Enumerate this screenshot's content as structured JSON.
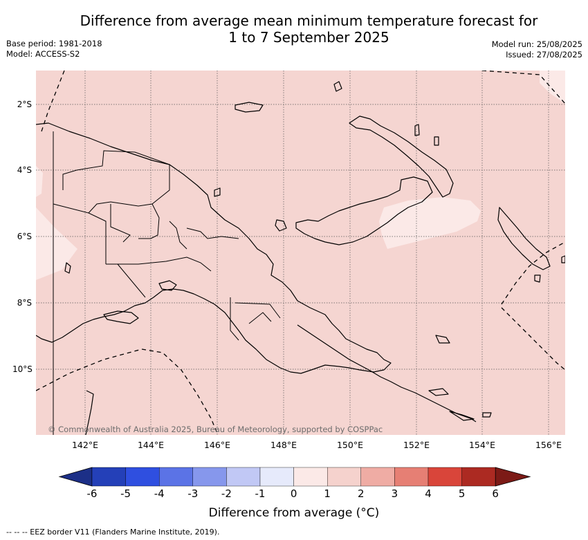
{
  "title_line1": "Difference from average mean minimum temperature forecast for",
  "title_line2": "1 to 7 September 2025",
  "base_period": "Base period: 1981-2018",
  "model": "Model: ACCESS-S2",
  "model_run": "Model run: 25/08/2025",
  "issued": "Issued: 27/08/2025",
  "lat_labels": [
    "2°S",
    "4°S",
    "6°S",
    "8°S",
    "10°S"
  ],
  "lon_labels": [
    "142°E",
    "144°E",
    "146°E",
    "148°E",
    "150°E",
    "152°E",
    "154°E",
    "156°E"
  ],
  "copyright": "© Commonwealth of Australia 2025, Bureau of Meteorology, supported by COSPPac",
  "colorbar": {
    "ticks": [
      "-6",
      "-5",
      "-4",
      "-3",
      "-2",
      "-1",
      "0",
      "1",
      "2",
      "3",
      "4",
      "5",
      "6"
    ],
    "colors": [
      "#1c2f87",
      "#2440b8",
      "#2f4fe0",
      "#5b73e6",
      "#8697ec",
      "#c1c8f5",
      "#e6eafb",
      "#fbe9e7",
      "#f5d2cd",
      "#efaca4",
      "#e67f74",
      "#d9453a",
      "#ac2a22",
      "#7c1a16"
    ],
    "title": "Difference from average (°C)"
  },
  "map_colors": {
    "base_anomaly": "#f5d5d1",
    "light_anomaly": "#fbe9e7"
  },
  "eez_note": "--  --  -- EEZ border V11 (Flanders Marine Institute, 2019)."
}
